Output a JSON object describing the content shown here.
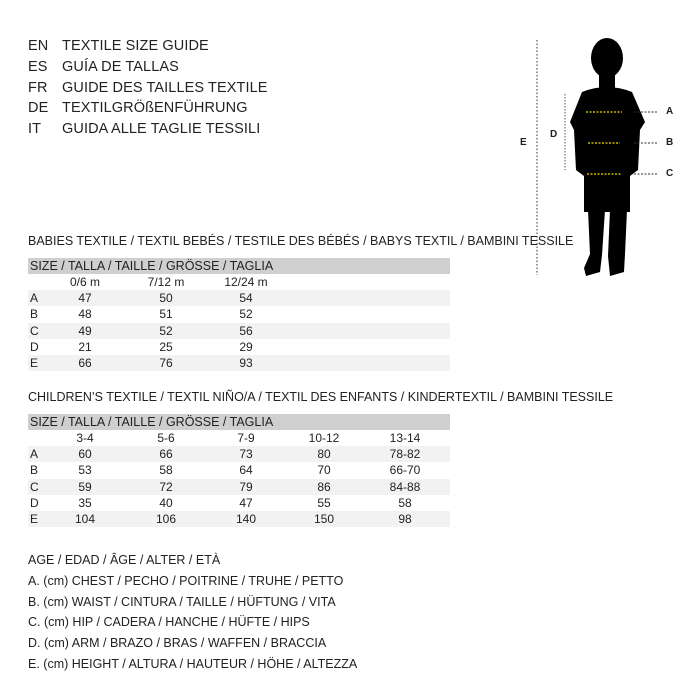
{
  "languages": [
    {
      "code": "EN",
      "text": "TEXTILE SIZE GUIDE"
    },
    {
      "code": "ES",
      "text": "GUÍA DE TALLAS"
    },
    {
      "code": "FR",
      "text": "GUIDE DES TAILLES TEXTILE"
    },
    {
      "code": "DE",
      "text": "TEXTILGRÖßENFÜHRUNG"
    },
    {
      "code": "IT",
      "text": "GUIDA ALLE TAGLIE TESSILI"
    }
  ],
  "babies": {
    "title": "BABIES TEXTILE / TEXTIL BEBÉS / TESTILE DES BÉBÉS / BABYS TEXTIL / BAMBINI TESSILE",
    "size_header": "SIZE / TALLA / TAILLE / GRÖSSE / TAGLIA",
    "columns": [
      "0/6 m",
      "7/12 m",
      "12/24 m"
    ],
    "rows": [
      {
        "label": "A",
        "values": [
          "47",
          "50",
          "54"
        ]
      },
      {
        "label": "B",
        "values": [
          "48",
          "51",
          "52"
        ]
      },
      {
        "label": "C",
        "values": [
          "49",
          "52",
          "56"
        ]
      },
      {
        "label": "D",
        "values": [
          "21",
          "25",
          "29"
        ]
      },
      {
        "label": "E",
        "values": [
          "66",
          "76",
          "93"
        ]
      }
    ]
  },
  "children": {
    "title": "CHILDREN’S TEXTILE / TEXTIL NIÑO/A / TEXTIL DES ENFANTS / KINDERTEXTIL / BAMBINI TESSILE",
    "size_header": "SIZE / TALLA / TAILLE / GRÖSSE / TAGLIA",
    "columns": [
      "3-4",
      "5-6",
      "7-9",
      "10-12",
      "13-14"
    ],
    "rows": [
      {
        "label": "A",
        "values": [
          "60",
          "66",
          "73",
          "80",
          "78-82"
        ]
      },
      {
        "label": "B",
        "values": [
          "53",
          "58",
          "64",
          "70",
          "66-70"
        ]
      },
      {
        "label": "C",
        "values": [
          "59",
          "72",
          "79",
          "86",
          "84-88"
        ]
      },
      {
        "label": "D",
        "values": [
          "35",
          "40",
          "47",
          "55",
          "58"
        ]
      },
      {
        "label": "E",
        "values": [
          "104",
          "106",
          "140",
          "150",
          "98"
        ]
      }
    ]
  },
  "legend": [
    "AGE / EDAD / ÂGE / ALTER / ETÀ",
    "A. (cm) CHEST / PECHO / POITRINE / TRUHE / PETTO",
    "B. (cm) WAIST / CINTURA / TAILLE / HÜFTUNG / VITA",
    "C. (cm) HIP / CADERA / HANCHE / HÜFTE / HIPS",
    "D. (cm) ARM / BRAZO / BRAS / WAFFEN / BRACCIA",
    "E. (cm) HEIGHT / ALTURA / HAUTEUR / HÖHE / ALTEZZA"
  ],
  "figure": {
    "labels": {
      "a": "A",
      "b": "B",
      "c": "C",
      "d": "D",
      "e": "E"
    },
    "measure_line_color": "#f5d800"
  }
}
